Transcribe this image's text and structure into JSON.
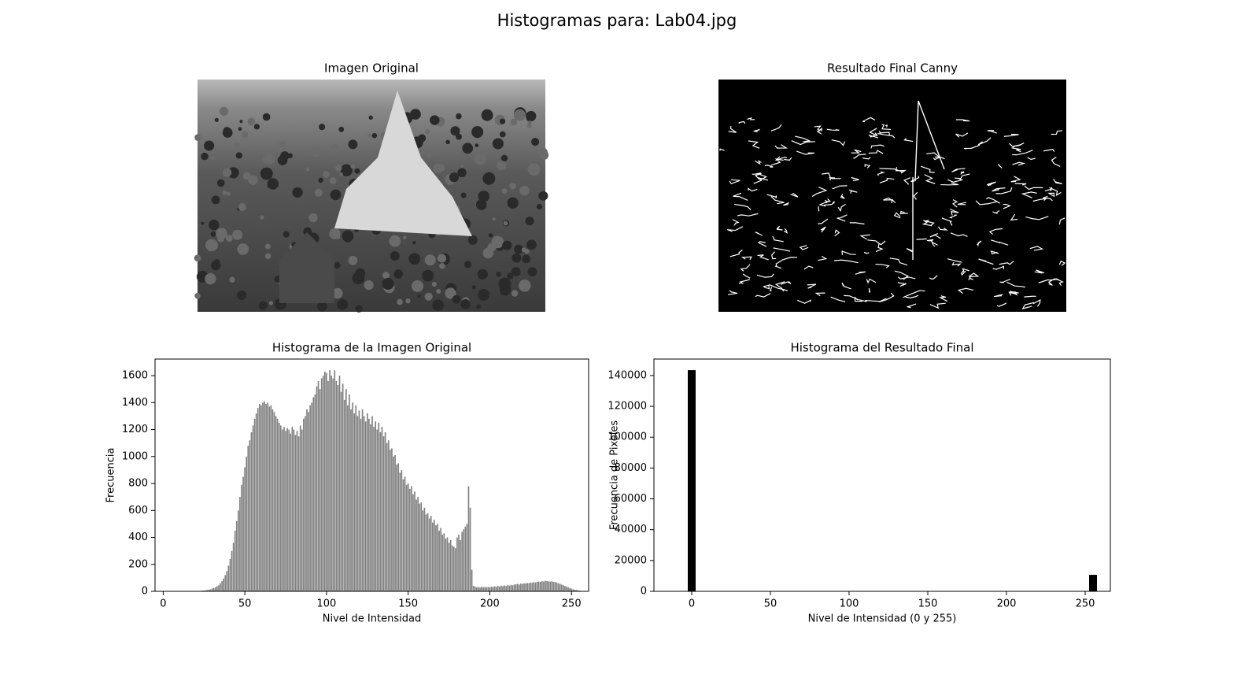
{
  "title": "Histogramas para: Lab04.jpg",
  "chart_data": [
    {
      "type": "image",
      "title": "Imagen Original"
    },
    {
      "type": "image",
      "title": "Resultado Final Canny"
    },
    {
      "type": "bar",
      "title": "Histograma de la Imagen Original",
      "xlabel": "Nivel de Intensidad",
      "ylabel": "Frecuencia",
      "color": "#808080",
      "x": [
        0,
        1,
        2,
        3,
        4,
        5,
        6,
        7,
        8,
        9,
        10,
        11,
        12,
        13,
        14,
        15,
        16,
        17,
        18,
        19,
        20,
        21,
        22,
        23,
        24,
        25,
        26,
        27,
        28,
        29,
        30,
        31,
        32,
        33,
        34,
        35,
        36,
        37,
        38,
        39,
        40,
        41,
        42,
        43,
        44,
        45,
        46,
        47,
        48,
        49,
        50,
        51,
        52,
        53,
        54,
        55,
        56,
        57,
        58,
        59,
        60,
        61,
        62,
        63,
        64,
        65,
        66,
        67,
        68,
        69,
        70,
        71,
        72,
        73,
        74,
        75,
        76,
        77,
        78,
        79,
        80,
        81,
        82,
        83,
        84,
        85,
        86,
        87,
        88,
        89,
        90,
        91,
        92,
        93,
        94,
        95,
        96,
        97,
        98,
        99,
        100,
        101,
        102,
        103,
        104,
        105,
        106,
        107,
        108,
        109,
        110,
        111,
        112,
        113,
        114,
        115,
        116,
        117,
        118,
        119,
        120,
        121,
        122,
        123,
        124,
        125,
        126,
        127,
        128,
        129,
        130,
        131,
        132,
        133,
        134,
        135,
        136,
        137,
        138,
        139,
        140,
        141,
        142,
        143,
        144,
        145,
        146,
        147,
        148,
        149,
        150,
        151,
        152,
        153,
        154,
        155,
        156,
        157,
        158,
        159,
        160,
        161,
        162,
        163,
        164,
        165,
        166,
        167,
        168,
        169,
        170,
        171,
        172,
        173,
        174,
        175,
        176,
        177,
        178,
        179,
        180,
        181,
        182,
        183,
        184,
        185,
        186,
        187,
        188,
        189,
        190,
        191,
        192,
        193,
        194,
        195,
        196,
        197,
        198,
        199,
        200,
        201,
        202,
        203,
        204,
        205,
        206,
        207,
        208,
        209,
        210,
        211,
        212,
        213,
        214,
        215,
        216,
        217,
        218,
        219,
        220,
        221,
        222,
        223,
        224,
        225,
        226,
        227,
        228,
        229,
        230,
        231,
        232,
        233,
        234,
        235,
        236,
        237,
        238,
        239,
        240,
        241,
        242,
        243,
        244,
        245,
        246,
        247,
        248,
        249,
        250,
        251,
        252,
        253,
        254,
        255
      ],
      "values": [
        0,
        0,
        0,
        0,
        0,
        0,
        0,
        0,
        0,
        0,
        0,
        0,
        0,
        0,
        0,
        0,
        0,
        0,
        0,
        0,
        0,
        0,
        2,
        3,
        5,
        6,
        8,
        10,
        12,
        15,
        20,
        25,
        30,
        38,
        45,
        60,
        75,
        95,
        120,
        150,
        190,
        240,
        300,
        360,
        450,
        520,
        600,
        700,
        790,
        850,
        920,
        1000,
        1080,
        1120,
        1180,
        1230,
        1280,
        1320,
        1360,
        1390,
        1380,
        1400,
        1410,
        1390,
        1400,
        1370,
        1380,
        1350,
        1330,
        1300,
        1280,
        1250,
        1230,
        1200,
        1220,
        1190,
        1210,
        1200,
        1170,
        1220,
        1200,
        1160,
        1190,
        1150,
        1230,
        1200,
        1280,
        1300,
        1350,
        1330,
        1380,
        1400,
        1440,
        1460,
        1520,
        1560,
        1500,
        1580,
        1600,
        1630,
        1620,
        1560,
        1640,
        1600,
        1580,
        1640,
        1560,
        1530,
        1600,
        1480,
        1540,
        1420,
        1500,
        1380,
        1460,
        1350,
        1400,
        1320,
        1380,
        1300,
        1340,
        1280,
        1350,
        1300,
        1260,
        1320,
        1280,
        1240,
        1300,
        1220,
        1260,
        1200,
        1250,
        1180,
        1220,
        1150,
        1180,
        1100,
        1120,
        1050,
        1060,
        1000,
        1010,
        940,
        950,
        880,
        900,
        830,
        850,
        790,
        800,
        760,
        780,
        720,
        740,
        680,
        700,
        650,
        660,
        600,
        620,
        570,
        580,
        540,
        560,
        510,
        530,
        490,
        500,
        450,
        470,
        420,
        430,
        390,
        400,
        360,
        380,
        340,
        330,
        320,
        400,
        420,
        380,
        440,
        460,
        480,
        500,
        780,
        620,
        160,
        40,
        35,
        30,
        32,
        28,
        35,
        30,
        33,
        30,
        32,
        30,
        35,
        32,
        38,
        34,
        40,
        36,
        42,
        38,
        44,
        40,
        46,
        42,
        48,
        45,
        50,
        52,
        55,
        50,
        58,
        55,
        60,
        58,
        62,
        60,
        65,
        63,
        68,
        66,
        70,
        72,
        70,
        75,
        73,
        78,
        76,
        74,
        72,
        75,
        70,
        68,
        65,
        60,
        55,
        50,
        45,
        40,
        35,
        30,
        25,
        20,
        15,
        12,
        10,
        8,
        5
      ],
      "xlim": [
        -5,
        260.5
      ],
      "ylim": [
        0,
        1723
      ],
      "xticks": [
        0,
        50,
        100,
        150,
        200,
        250
      ],
      "yticks": [
        0,
        200,
        400,
        600,
        800,
        1000,
        1200,
        1400,
        1600
      ]
    },
    {
      "type": "bar",
      "title": "Histograma del Resultado Final",
      "xlabel": "Nivel de Intensidad (0 y 255)",
      "ylabel": "Frecuencia de Pixeles",
      "color": "#000000",
      "x": [
        0,
        255
      ],
      "values": [
        143500,
        10700
      ],
      "xlim": [
        -24,
        266
      ],
      "ylim": [
        0,
        150700
      ],
      "xticks": [
        0,
        50,
        100,
        150,
        200,
        250
      ],
      "yticks": [
        0,
        20000,
        40000,
        60000,
        80000,
        100000,
        120000,
        140000
      ]
    }
  ]
}
